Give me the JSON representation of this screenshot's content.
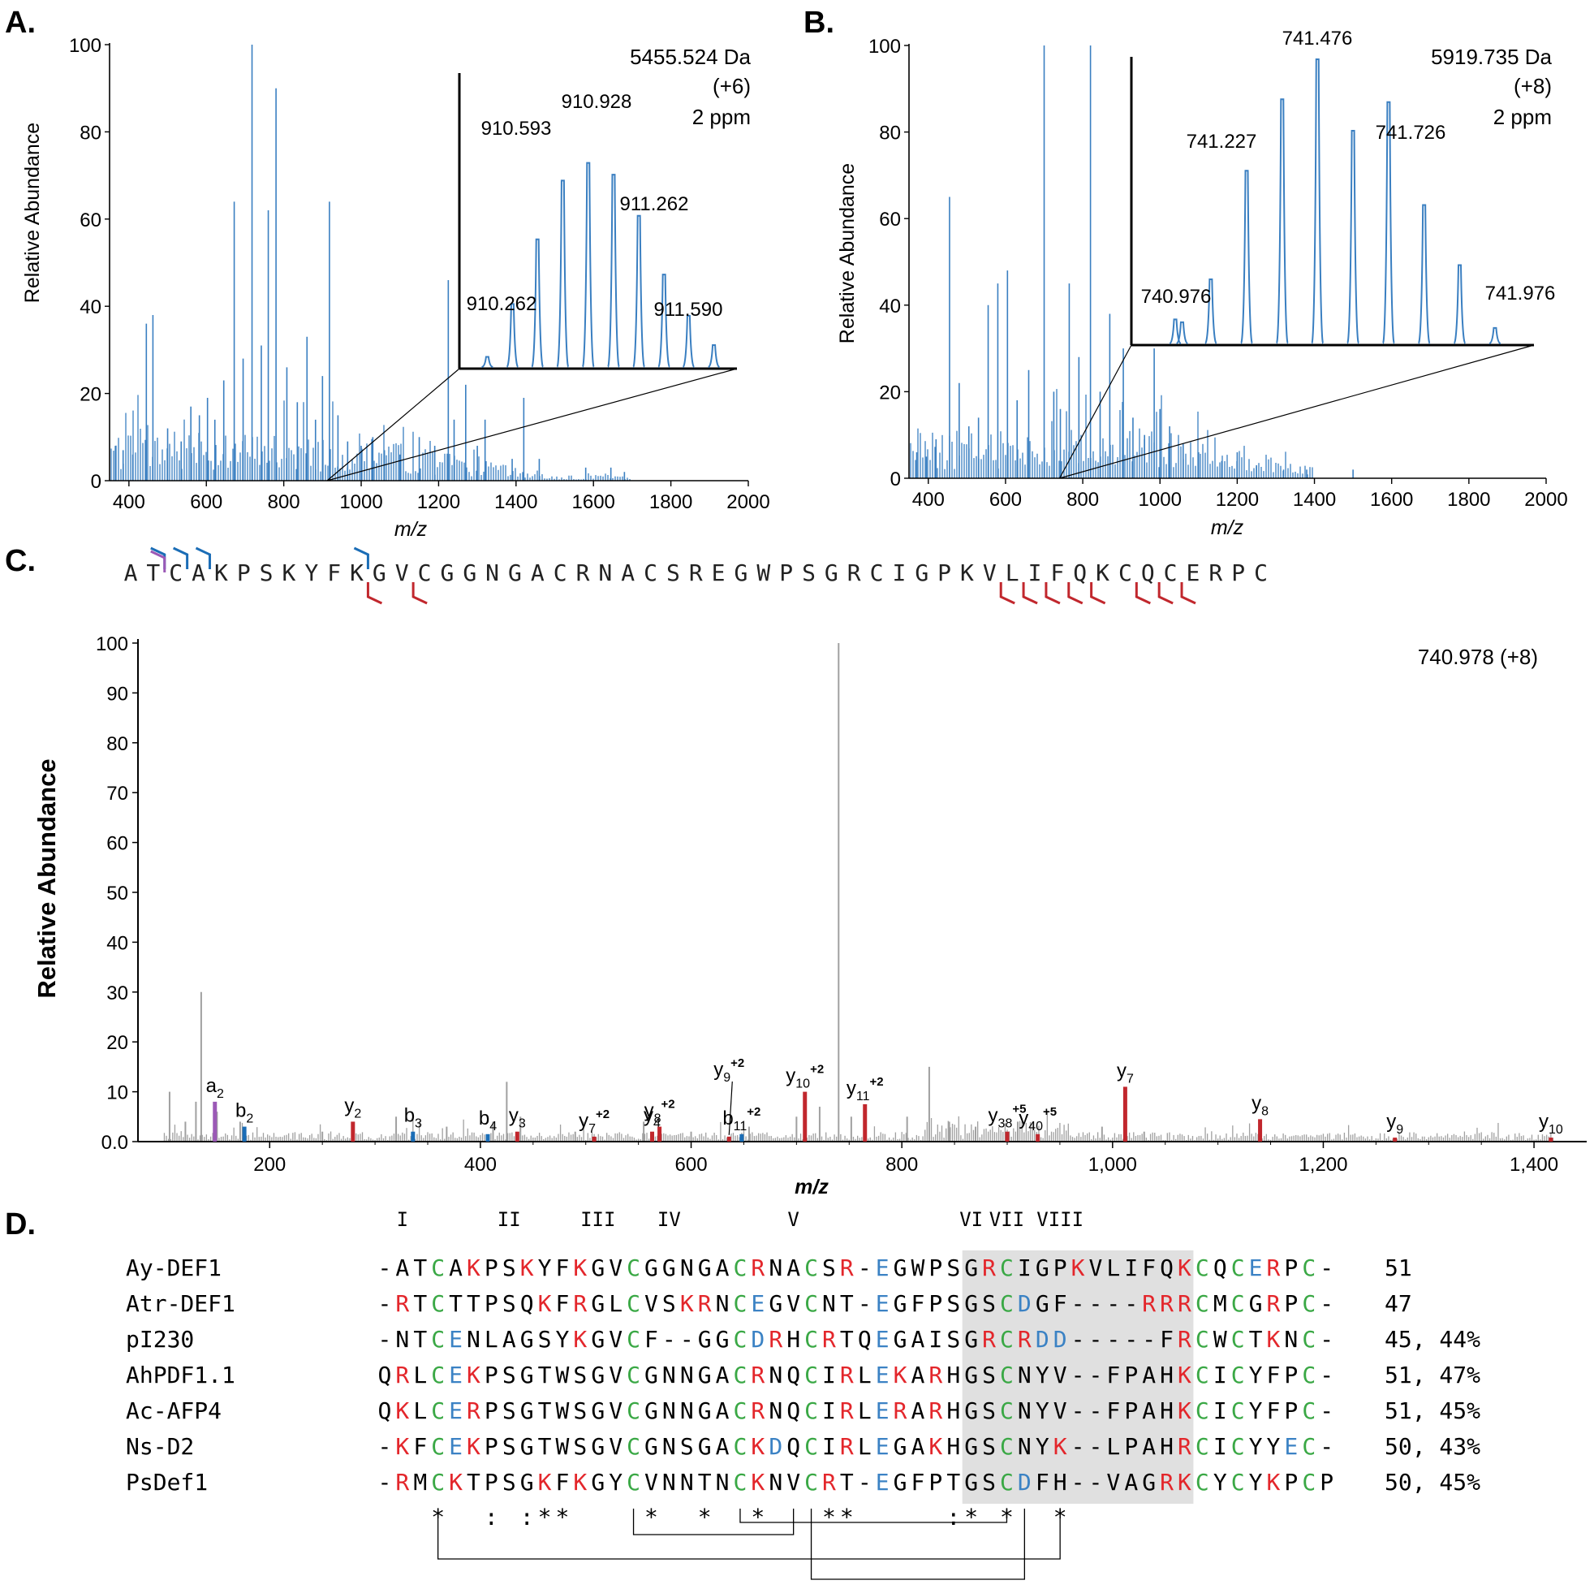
{
  "chart_data": [
    {
      "panel": "A.",
      "type": "line",
      "ylabel": "Relative Abundance",
      "xlabel": "m/z",
      "xlim": [
        350,
        2000
      ],
      "ylim": [
        0,
        100
      ],
      "x_ticks": [
        "400",
        "600",
        "800",
        "1000",
        "1200",
        "1400",
        "1600",
        "1800",
        "2000"
      ],
      "y_ticks": [
        "0",
        "20",
        "40",
        "60",
        "80",
        "100"
      ],
      "annotation": [
        "5455.524 Da",
        "(+6)",
        "2 ppm"
      ],
      "zoom_range": [
        910,
        1000
      ],
      "peaks": [
        [
          365,
          8
        ],
        [
          385,
          7
        ],
        [
          410,
          6
        ],
        [
          445,
          36
        ],
        [
          462,
          38
        ],
        [
          500,
          12
        ],
        [
          535,
          9
        ],
        [
          560,
          17
        ],
        [
          582,
          15
        ],
        [
          603,
          19
        ],
        [
          622,
          14
        ],
        [
          645,
          23
        ],
        [
          672,
          64
        ],
        [
          695,
          28
        ],
        [
          718,
          100
        ],
        [
          742,
          31
        ],
        [
          760,
          62
        ],
        [
          780,
          90
        ],
        [
          808,
          26
        ],
        [
          835,
          18
        ],
        [
          860,
          33
        ],
        [
          882,
          14
        ],
        [
          900,
          24
        ],
        [
          918,
          64
        ],
        [
          940,
          15
        ],
        [
          965,
          9
        ],
        [
          1000,
          8
        ],
        [
          1030,
          10
        ],
        [
          1060,
          7
        ],
        [
          1100,
          6
        ],
        [
          1150,
          10
        ],
        [
          1190,
          8
        ],
        [
          1225,
          46
        ],
        [
          1240,
          14
        ],
        [
          1270,
          22
        ],
        [
          1300,
          8
        ],
        [
          1320,
          14
        ],
        [
          1390,
          5
        ],
        [
          1420,
          19
        ],
        [
          1460,
          5
        ],
        [
          1580,
          3
        ],
        [
          1645,
          3
        ],
        [
          1680,
          2
        ]
      ],
      "inset": {
        "peaks": [
          [
            910.262,
            4
          ],
          [
            910.428,
            22
          ],
          [
            910.593,
            44
          ],
          [
            910.76,
            64
          ],
          [
            910.928,
            70
          ],
          [
            911.095,
            66
          ],
          [
            911.262,
            52
          ],
          [
            911.428,
            32
          ],
          [
            911.59,
            18
          ],
          [
            911.757,
            8
          ]
        ],
        "labels": [
          "910.262",
          "910.593",
          "910.928",
          "911.262",
          "911.590"
        ]
      }
    },
    {
      "panel": "B.",
      "type": "line",
      "ylabel": "Relative Abundance",
      "xlabel": "m/z",
      "xlim": [
        350,
        2000
      ],
      "ylim": [
        0,
        100
      ],
      "x_ticks": [
        "400",
        "600",
        "800",
        "1000",
        "1200",
        "1400",
        "1600",
        "1800",
        "2000"
      ],
      "y_ticks": [
        "0",
        "20",
        "40",
        "60",
        "80",
        "100"
      ],
      "annotation": [
        "5919.735 Da",
        "(+8)",
        "2 ppm"
      ],
      "zoom_range": [
        740,
        742
      ],
      "peaks": [
        [
          370,
          6
        ],
        [
          395,
          5
        ],
        [
          420,
          9
        ],
        [
          455,
          65
        ],
        [
          480,
          22
        ],
        [
          505,
          12
        ],
        [
          530,
          14
        ],
        [
          555,
          40
        ],
        [
          580,
          45
        ],
        [
          605,
          48
        ],
        [
          630,
          18
        ],
        [
          660,
          25
        ],
        [
          700,
          100
        ],
        [
          725,
          20
        ],
        [
          742,
          16
        ],
        [
          765,
          45
        ],
        [
          790,
          28
        ],
        [
          820,
          100
        ],
        [
          845,
          20
        ],
        [
          870,
          38
        ],
        [
          905,
          30
        ],
        [
          930,
          14
        ],
        [
          960,
          10
        ],
        [
          985,
          30
        ],
        [
          1000,
          16
        ],
        [
          1025,
          12
        ],
        [
          1060,
          8
        ],
        [
          1100,
          6
        ],
        [
          1160,
          4
        ],
        [
          1200,
          6
        ],
        [
          1250,
          3
        ],
        [
          1320,
          2
        ],
        [
          1380,
          2
        ],
        [
          1500,
          2
        ]
      ],
      "inset": {
        "peaks": [
          [
            740.976,
            9
          ],
          [
            741.0,
            8
          ],
          [
            741.101,
            23
          ],
          [
            741.227,
            61
          ],
          [
            741.352,
            86
          ],
          [
            741.476,
            100
          ],
          [
            741.601,
            75
          ],
          [
            741.726,
            85
          ],
          [
            741.851,
            49
          ],
          [
            741.976,
            28
          ],
          [
            742.1,
            6
          ]
        ],
        "labels": [
          "740.976",
          "741.227",
          "741.476",
          "741.726",
          "741.976"
        ]
      }
    },
    {
      "panel": "C.",
      "type": "bar",
      "ylabel": "Relative Abundance",
      "xlabel": "m/z",
      "xlim": [
        75,
        1450
      ],
      "ylim": [
        0,
        100
      ],
      "x_ticks": [
        "200",
        "400",
        "600",
        "800",
        "1,000",
        "1,200",
        "1,400"
      ],
      "y_ticks": [
        "0.0",
        "10",
        "20",
        "30",
        "40",
        "50",
        "60",
        "70",
        "80",
        "90",
        "100"
      ],
      "annotation": "740.978 (+8)",
      "sequence": "ATCAKPSKYFKGVCGGNGACRNACSREGWPSGRCIGPKVLIFQKCQCERPC",
      "b_cleavage_after": [
        2,
        3,
        4,
        11
      ],
      "a_cleavage_after": [
        2
      ],
      "y_cleavage_before": [
        12,
        14,
        40,
        41,
        42,
        43,
        44,
        46,
        47,
        48
      ],
      "background_peaks": [
        [
          105,
          10
        ],
        [
          120,
          4
        ],
        [
          130,
          8
        ],
        [
          135,
          30
        ],
        [
          150,
          6
        ],
        [
          172,
          4
        ],
        [
          250,
          2
        ],
        [
          320,
          5
        ],
        [
          368,
          3
        ],
        [
          412,
          4
        ],
        [
          425,
          12
        ],
        [
          438,
          5
        ],
        [
          490,
          2
        ],
        [
          555,
          4
        ],
        [
          600,
          2
        ],
        [
          655,
          3
        ],
        [
          700,
          5
        ],
        [
          722,
          7
        ],
        [
          740,
          100
        ],
        [
          752,
          5
        ],
        [
          805,
          5
        ],
        [
          826,
          15
        ],
        [
          845,
          4
        ],
        [
          870,
          3
        ],
        [
          910,
          4
        ],
        [
          990,
          3
        ],
        [
          1030,
          2
        ]
      ],
      "ions": [
        {
          "type": "a",
          "mz": 148,
          "value": 8,
          "label": "a",
          "sub": "2",
          "sup": ""
        },
        {
          "type": "b",
          "mz": 176,
          "value": 3,
          "label": "b",
          "sub": "2",
          "sup": ""
        },
        {
          "type": "y",
          "mz": 279,
          "value": 4,
          "label": "y",
          "sub": "2",
          "sup": ""
        },
        {
          "type": "b",
          "mz": 336,
          "value": 2,
          "label": "b",
          "sub": "3",
          "sup": ""
        },
        {
          "type": "b",
          "mz": 407,
          "value": 1.5,
          "label": "b",
          "sub": "4",
          "sup": ""
        },
        {
          "type": "y",
          "mz": 435,
          "value": 2,
          "label": "y",
          "sub": "3",
          "sup": ""
        },
        {
          "type": "y",
          "mz": 508,
          "value": 1,
          "label": "y",
          "sub": "7",
          "sup": "+2"
        },
        {
          "type": "y",
          "mz": 563,
          "value": 2,
          "label": "y",
          "sub": "4",
          "sup": ""
        },
        {
          "type": "y",
          "mz": 570,
          "value": 3,
          "label": "y",
          "sub": "8",
          "sup": "+2"
        },
        {
          "type": "y",
          "mz": 636,
          "value": 1,
          "label": "y",
          "sub": "9",
          "sup": "+2"
        },
        {
          "type": "b",
          "mz": 648,
          "value": 1.5,
          "label": "b",
          "sub": "11",
          "sup": "+2"
        },
        {
          "type": "y",
          "mz": 708,
          "value": 10,
          "label": "y",
          "sub": "10",
          "sup": "+2"
        },
        {
          "type": "y",
          "mz": 765,
          "value": 7.5,
          "label": "y",
          "sub": "11",
          "sup": "+2"
        },
        {
          "type": "y",
          "mz": 900,
          "value": 2,
          "label": "y",
          "sub": "38",
          "sup": "+5"
        },
        {
          "type": "y",
          "mz": 929,
          "value": 1.5,
          "label": "y",
          "sub": "40",
          "sup": "+5"
        },
        {
          "type": "y",
          "mz": 1012,
          "value": 11,
          "label": "y",
          "sub": "7",
          "sup": ""
        },
        {
          "type": "y",
          "mz": 1140,
          "value": 4.5,
          "label": "y",
          "sub": "8",
          "sup": ""
        },
        {
          "type": "y",
          "mz": 1268,
          "value": 0.8,
          "label": "y",
          "sub": "9",
          "sup": ""
        },
        {
          "type": "y",
          "mz": 1416,
          "value": 0.8,
          "label": "y",
          "sub": "10",
          "sup": ""
        }
      ]
    },
    {
      "panel": "D.",
      "type": "table",
      "roman": [
        "I",
        "II",
        "III",
        "IV",
        "V",
        "VI",
        "VII",
        "VIII"
      ],
      "roman_cols": [
        1,
        7,
        12,
        16,
        23,
        33,
        35,
        38
      ],
      "names": [
        "Ay-DEF1",
        "Atr-DEF1",
        "pI230",
        "AhPDF1.1",
        "Ac-AFP4",
        "Ns-D2",
        "PsDef1"
      ],
      "sequences": [
        "-ATCAKPSKYFKGVCGGNGACRNACSR-EGWPSGRCIGPKVLIFQKCQCERPC-",
        "-RTCTTPSQKFRGLCVSKRNCEGVCNT-EGFPSGSCDGF----RRRCMCGRPC-",
        "-NTCENLAGSYKGVCF--GGCDRHCRTQEGAISGRCRDD-----FRCWCTKNC-",
        "QRLCEKPSGTWSGVCGNNGACRNQCIRLEKARHGSCNYV--FPAHKCICYFPC-",
        "QKLCERPSGTWSGVCGNNGACRNQCIRLERARHGSCNYV--FPAHKCICYFPC-",
        "-KFCEKPSGTWSGVCGNSGACKDQCIRLEGAKHGSCNYK--LPAHRCICYYEC-",
        "-RMCKTPSGKFKGYCVNNTNCKNVCRT-EGFPTGSCDFH--VAGRKCYCYKPCP"
      ],
      "stats": [
        "51",
        "47",
        "45, 44%",
        "51, 47%",
        "51, 45%",
        "50, 43%",
        "50, 45%"
      ],
      "conservation": "   *  : :**    *  *  *   **     :* *  * ",
      "disulfide_cols": [
        [
          3,
          38
        ],
        [
          14,
          23
        ],
        [
          20,
          35
        ],
        [
          24,
          36
        ]
      ],
      "gray_box_cols": [
        33,
        46
      ]
    }
  ],
  "colors": {
    "spectrum_blue": "#3a7fc1",
    "b_ion_blue": "#1b6db6",
    "y_ion_red": "#c1272d",
    "a_ion_purple": "#9b59b6",
    "gray_peak": "#a0a0a0",
    "K_R_red": "#e3262b",
    "C_green": "#3aa845",
    "D_E_blue": "#3b82c4",
    "box_gray": "#e0e0e0",
    "text_black": "#000000"
  }
}
